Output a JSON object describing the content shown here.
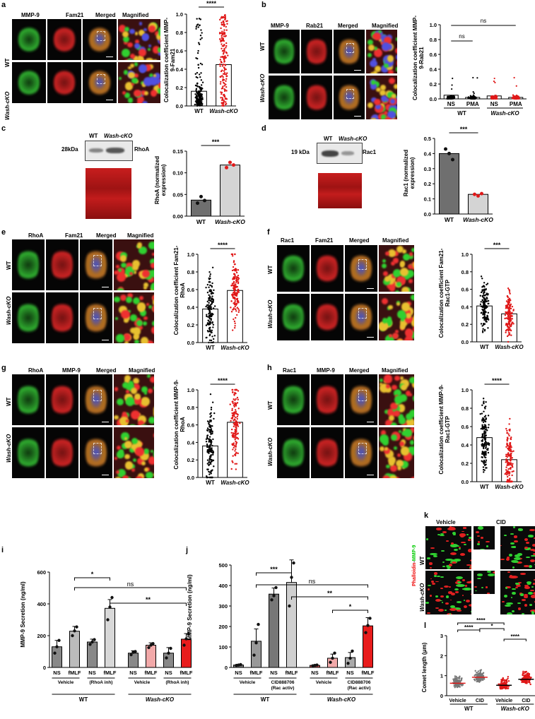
{
  "panels": {
    "a": {
      "letter": "a",
      "channels": [
        "MMP-9",
        "Fam21",
        "Merged",
        "Magnified"
      ],
      "rows": [
        "WT",
        "Wash-cKO"
      ],
      "ylabel": "Colocalization coefficient MMP-9-Fam21",
      "sig": "****",
      "xticks": [
        "WT",
        "Wash-cKO"
      ],
      "yticks": [
        "0.0",
        "0.2",
        "0.4",
        "0.6",
        "0.8",
        "1.0"
      ]
    },
    "b": {
      "letter": "b",
      "channels": [
        "MMP-9",
        "Rab21",
        "Merged",
        "Magnified"
      ],
      "rows": [
        "WT",
        "Wash-cKO"
      ],
      "ylabel": "Colocalization coefficient MMP-9-Rab21",
      "sig1": "ns",
      "sig2": "ns",
      "xticks": [
        "NS",
        "PMA",
        "NS",
        "PMA"
      ],
      "groups": [
        "WT",
        "Wash-cKO"
      ],
      "yticks": [
        "0.0",
        "0.2",
        "0.4",
        "0.6",
        "0.8",
        "1.0"
      ]
    },
    "c": {
      "letter": "c",
      "lanes": [
        "WT",
        "Wash-cKO"
      ],
      "marker": "28kDa",
      "protein": "RhoA",
      "ylabel": "RhoA (normalized expression)",
      "sig": "***",
      "xticks": [
        "WT",
        "Wash-cKO"
      ],
      "yticks": [
        "0.00",
        "0.05",
        "0.10",
        "0.15"
      ]
    },
    "d": {
      "letter": "d",
      "lanes": [
        "WT",
        "Wash-cKO"
      ],
      "marker": "19 kDa",
      "protein": "Rac1",
      "ylabel": "Rac1 (normalized expression)",
      "sig": "***",
      "xticks": [
        "WT",
        "Wash-cKO"
      ],
      "yticks": [
        "0.0",
        "0.1",
        "0.2",
        "0.3",
        "0.4",
        "0.5"
      ]
    },
    "e": {
      "letter": "e",
      "channels": [
        "RhoA",
        "Fam21",
        "Merged",
        "Magnified"
      ],
      "rows": [
        "WT",
        "Wash-cKO"
      ],
      "ylabel": "Colocalization coefficient Fam21-RhoA",
      "sig": "****",
      "xticks": [
        "WT",
        "Wash-cKO"
      ],
      "yticks": [
        "0.0",
        "0.2",
        "0.4",
        "0.6",
        "0.8",
        "1.0"
      ]
    },
    "f": {
      "letter": "f",
      "channels": [
        "Rac1",
        "Fam21",
        "Merged",
        "Magnified"
      ],
      "rows": [
        "WT",
        "Wash-cKO"
      ],
      "ylabel": "Colocalization coefficient Fam21-Rac1-GTP",
      "sig": "***",
      "xticks": [
        "WT",
        "Wash-cKO"
      ],
      "yticks": [
        "0.0",
        "0.2",
        "0.4",
        "0.6",
        "0.8",
        "1.0"
      ]
    },
    "g": {
      "letter": "g",
      "channels": [
        "RhoA",
        "MMP-9",
        "Merged",
        "Magnified"
      ],
      "rows": [
        "WT",
        "Wash-cKO"
      ],
      "ylabel": "Colocalization coefficient MMP-9-RhoA",
      "sig": "****",
      "xticks": [
        "WT",
        "Wash-cKO"
      ],
      "yticks": [
        "0.0",
        "0.2",
        "0.4",
        "0.6",
        "0.8",
        "1.0"
      ]
    },
    "h": {
      "letter": "h",
      "channels": [
        "Rac1",
        "MMP-9",
        "Merged",
        "Magnified"
      ],
      "rows": [
        "WT",
        "Wash-cKO"
      ],
      "ylabel": "Colocalization coefficient MMP-9-Rac1-GTP",
      "sig": "****",
      "xticks": [
        "WT",
        "Wash-cKO"
      ],
      "yticks": [
        "0.0",
        "0.2",
        "0.4",
        "0.6",
        "0.8",
        "1.0"
      ]
    },
    "i": {
      "letter": "i",
      "ylabel": "MMP-9 Secretion (ng/ml)",
      "sig": [
        "*",
        "ns",
        "**"
      ],
      "xticks": [
        "NS",
        "fMLF",
        "NS",
        "fMLF",
        "NS",
        "fMLF",
        "NS",
        "fMLF"
      ],
      "treatments": [
        "Vehicle",
        "(RhoA inh)",
        "Vehicle",
        "(RhoA inh)"
      ],
      "groups": [
        "WT",
        "Wash-cKO"
      ],
      "yticks": [
        "0",
        "200",
        "400",
        "600"
      ]
    },
    "j": {
      "letter": "j",
      "ylabel": "MMP-9 Secretion (ng/ml)",
      "sig": [
        "***",
        "ns",
        "**",
        "*"
      ],
      "xticks": [
        "NS",
        "fMLF",
        "NS",
        "fMLF",
        "NS",
        "fMLF",
        "NS",
        "fMLF"
      ],
      "treatments": [
        "Vehicle",
        "CID888706 (Rac activ)",
        "Vehicle",
        "CID888706 (Rac activ)"
      ],
      "groups": [
        "WT",
        "Wash-cKO"
      ],
      "yticks": [
        "0",
        "100",
        "200",
        "300",
        "400",
        "500"
      ]
    },
    "k": {
      "letter": "k",
      "columns": [
        "Vehicle",
        "CID"
      ],
      "rows": [
        "WT",
        "Wash-cKO"
      ],
      "stain_red": "Phalloidin",
      "stain_sep": "-",
      "stain_green": "MMP-9"
    },
    "l": {
      "letter": "l",
      "ylabel": "Comet length (μm)",
      "sig": [
        "****",
        "****",
        "*",
        "****"
      ],
      "xticks": [
        "Vehicle",
        "CID",
        "Vehicle",
        "CID"
      ],
      "groups": [
        "WT",
        "Wash-cKO"
      ],
      "yticks": [
        "0",
        "1",
        "2",
        "3"
      ]
    }
  },
  "chart_data": [
    {
      "id": "a",
      "type": "bar",
      "categories": [
        "WT",
        "Wash-cKO"
      ],
      "values": [
        0.16,
        0.45
      ],
      "ylim": [
        0,
        1.0
      ],
      "ylabel": "Colocalization coefficient MMP-9-Fam21",
      "colors": [
        "#000000",
        "#e01818"
      ]
    },
    {
      "id": "b",
      "type": "bar",
      "categories": [
        "NS",
        "PMA",
        "NS",
        "PMA"
      ],
      "values": [
        0.05,
        0.02,
        0.04,
        0.02
      ],
      "ylim": [
        0,
        1.0
      ],
      "ylabel": "Colocalization coefficient MMP-9-Rab21",
      "colors": [
        "#000000",
        "#000000",
        "#e01818",
        "#e01818"
      ]
    },
    {
      "id": "c",
      "type": "bar",
      "categories": [
        "WT",
        "Wash-cKO"
      ],
      "values": [
        0.037,
        0.118
      ],
      "points": [
        [
          0.03,
          0.045,
          0.036
        ],
        [
          0.112,
          0.124,
          0.118
        ]
      ],
      "ylim": [
        0,
        0.15
      ],
      "ylabel": "RhoA (normalized expression)"
    },
    {
      "id": "d",
      "type": "bar",
      "categories": [
        "WT",
        "Wash-cKO"
      ],
      "values": [
        0.4,
        0.13
      ],
      "points": [
        [
          0.43,
          0.4,
          0.36
        ],
        [
          0.13,
          0.12,
          0.135
        ]
      ],
      "ylim": [
        0,
        0.5
      ],
      "ylabel": "Rac1 (normalized expression)"
    },
    {
      "id": "e",
      "type": "bar",
      "categories": [
        "WT",
        "Wash-cKO"
      ],
      "values": [
        0.38,
        0.59
      ],
      "ylim": [
        0,
        1.0
      ],
      "ylabel": "Colocalization coefficient Fam21-RhoA"
    },
    {
      "id": "f",
      "type": "bar",
      "categories": [
        "WT",
        "Wash-cKO"
      ],
      "values": [
        0.41,
        0.32
      ],
      "ylim": [
        0,
        1.0
      ],
      "ylabel": "Colocalization coefficient Fam21-Rac1-GTP"
    },
    {
      "id": "g",
      "type": "bar",
      "categories": [
        "WT",
        "Wash-cKO"
      ],
      "values": [
        0.36,
        0.63
      ],
      "ylim": [
        0,
        1.0
      ],
      "ylabel": "Colocalization coefficient MMP-9-RhoA"
    },
    {
      "id": "h",
      "type": "bar",
      "categories": [
        "WT",
        "Wash-cKO"
      ],
      "values": [
        0.48,
        0.24
      ],
      "ylim": [
        0,
        1.0
      ],
      "ylabel": "Colocalization coefficient MMP-9-Rac1-GTP"
    },
    {
      "id": "i",
      "type": "bar",
      "categories": [
        "NS",
        "fMLF",
        "NS",
        "fMLF",
        "NS",
        "fMLF",
        "NS",
        "fMLF"
      ],
      "values": [
        130,
        228,
        160,
        372,
        90,
        140,
        90,
        178
      ],
      "errors": [
        40,
        30,
        18,
        55,
        15,
        15,
        35,
        35
      ],
      "points": [
        [
          90,
          130,
          170
        ],
        [
          200,
          230,
          255
        ],
        [
          145,
          160,
          175
        ],
        [
          300,
          380,
          440
        ],
        [
          80,
          95,
          100
        ],
        [
          125,
          140,
          150
        ],
        [
          60,
          90,
          120
        ],
        [
          140,
          180,
          210
        ]
      ],
      "ylim": [
        0,
        600
      ],
      "ylabel": "MMP-9 Secretion (ng/ml)",
      "colors": [
        "#888888",
        "#bbbbbb",
        "#888888",
        "#d8d8d8",
        "#888888",
        "#f2a9a9",
        "#888888",
        "#e81c1c"
      ]
    },
    {
      "id": "j",
      "type": "bar",
      "categories": [
        "NS",
        "fMLF",
        "NS",
        "fMLF",
        "NS",
        "fMLF",
        "NS",
        "fMLF"
      ],
      "values": [
        12,
        128,
        358,
        415,
        10,
        45,
        48,
        203
      ],
      "errors": [
        3,
        60,
        30,
        110,
        3,
        20,
        25,
        40
      ],
      "points": [
        [
          10,
          12,
          14
        ],
        [
          60,
          120,
          210
        ],
        [
          330,
          350,
          390
        ],
        [
          300,
          440,
          510
        ],
        [
          8,
          10,
          12
        ],
        [
          25,
          45,
          70
        ],
        [
          20,
          45,
          80
        ],
        [
          170,
          205,
          240
        ]
      ],
      "ylim": [
        0,
        500
      ],
      "ylabel": "MMP-9 Secretion (ng/ml)",
      "colors": [
        "#777777",
        "#999999",
        "#777777",
        "#d0d0d0",
        "#c84e4e",
        "#f2a9a9",
        "#aaaaaa",
        "#e81c1c"
      ]
    },
    {
      "id": "l",
      "type": "scatter",
      "categories": [
        "Vehicle",
        "CID",
        "Vehicle",
        "CID"
      ],
      "values": [
        0.62,
        0.92,
        0.52,
        0.82
      ],
      "ylim": [
        0,
        3
      ],
      "ylabel": "Comet length (μm)"
    }
  ]
}
